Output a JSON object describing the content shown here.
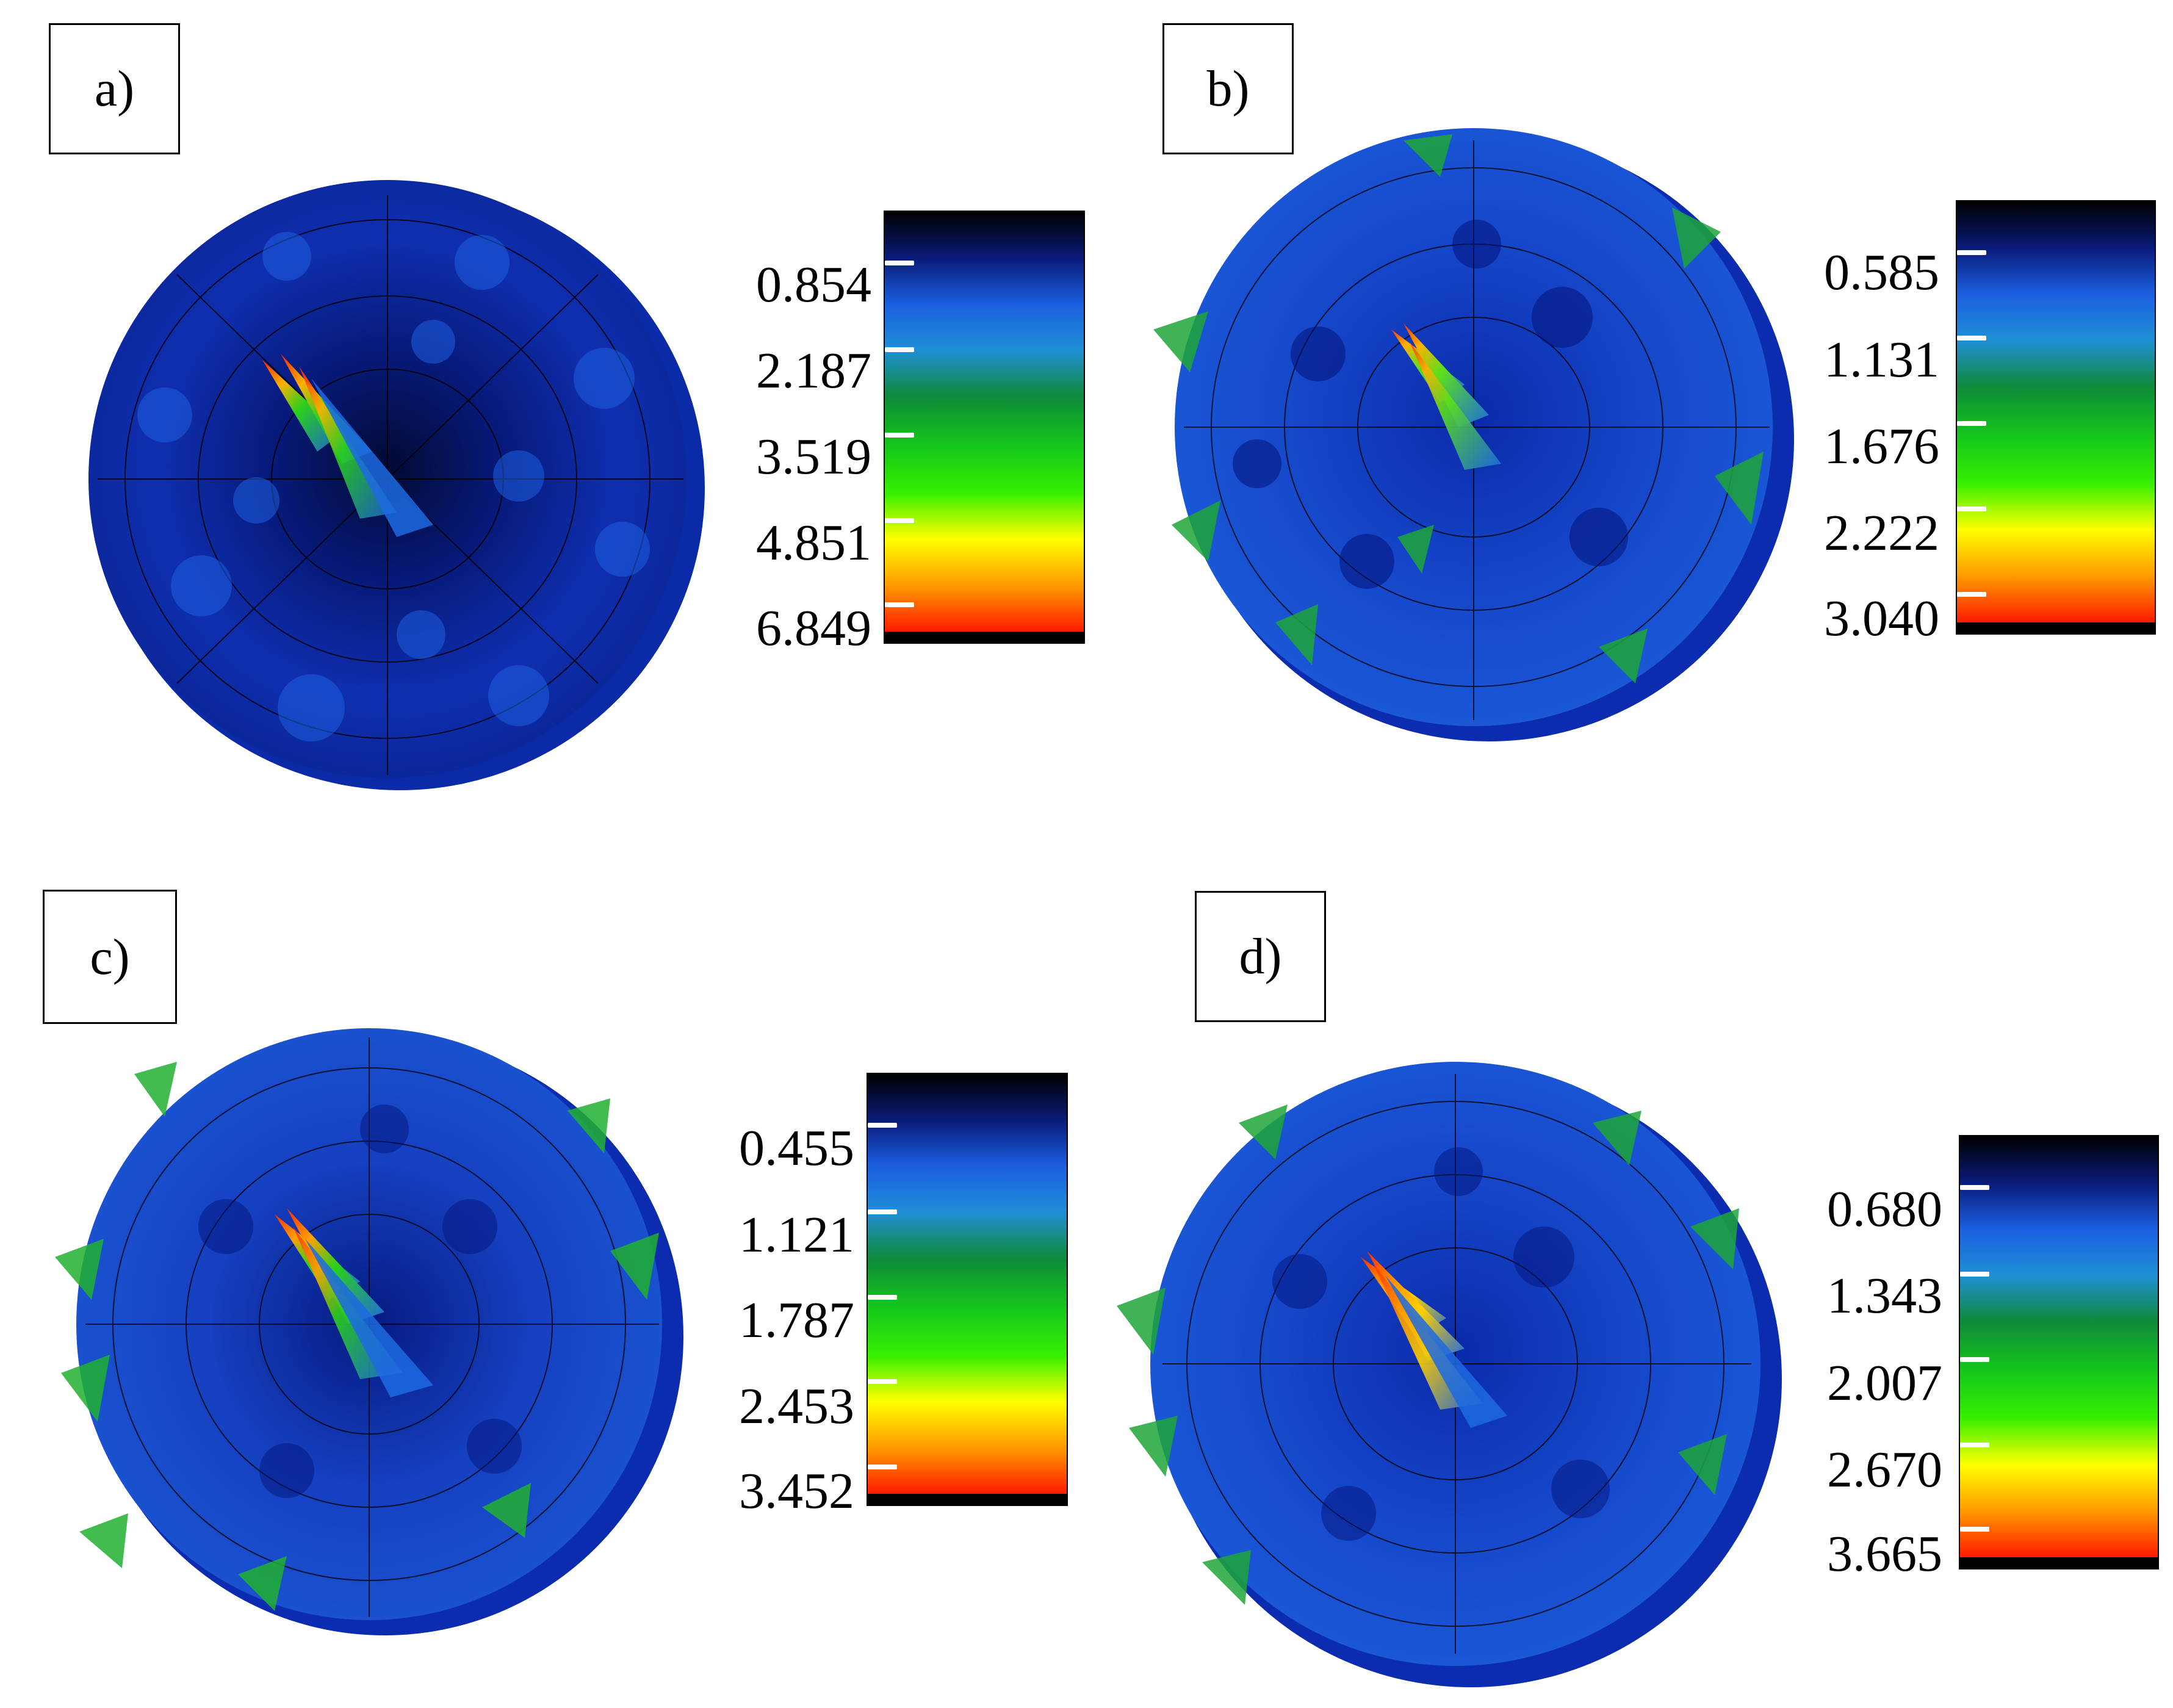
{
  "panels": [
    {
      "label": "a)",
      "ticks": [
        "0.854",
        "2.187",
        "3.519",
        "4.851",
        "6.849"
      ]
    },
    {
      "label": "b)",
      "ticks": [
        "0.585",
        "1.131",
        "1.676",
        "2.222",
        "3.040"
      ]
    },
    {
      "label": "c)",
      "ticks": [
        "0.455",
        "1.121",
        "1.787",
        "2.453",
        "3.452"
      ]
    },
    {
      "label": "d)",
      "ticks": [
        "0.680",
        "1.343",
        "2.007",
        "2.670",
        "3.665"
      ]
    }
  ],
  "colors": {
    "colormap": [
      "#000000",
      "#0a1a7a",
      "#1b5fe0",
      "#1f8fd6",
      "#0e8a3a",
      "#15c81a",
      "#36f000",
      "#ffff00",
      "#ff9a00",
      "#ff1a00"
    ],
    "surface_dark": "#03104f",
    "surface_mid": "#1439c8",
    "surface_light": "#1e6fe6",
    "surface_green": "#1fa638",
    "peak_orange": "#ff8a00",
    "peak_red": "#ff1e00"
  }
}
